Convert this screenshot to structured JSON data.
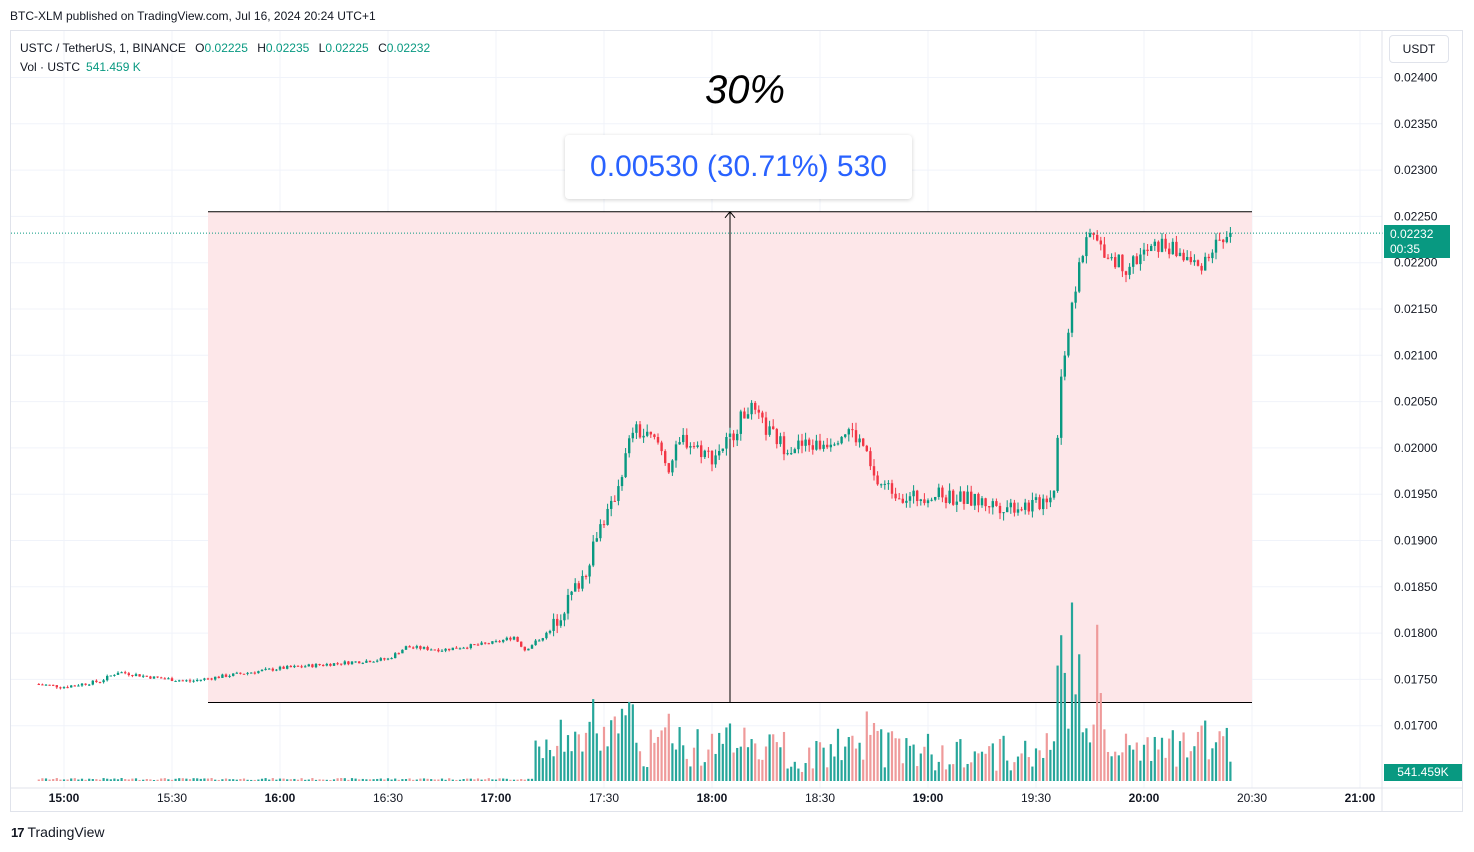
{
  "header": {
    "publish_line": "BTC-XLM published on TradingView.com, Jul 16, 2024 20:24 UTC+1"
  },
  "legend": {
    "symbol": "USTC / TetherUS, 1, BINANCE",
    "o_key": "O",
    "o_val": "0.02225",
    "h_key": "H",
    "h_val": "0.02235",
    "l_key": "L",
    "l_val": "0.02225",
    "c_key": "C",
    "c_val": "0.02232",
    "vol_label": "Vol · USTC",
    "vol_val": "541.459 K"
  },
  "toolbar": {
    "currency_label": "USDT"
  },
  "annotation": {
    "title": "30%",
    "measure_label": "0.00530 (30.71%) 530"
  },
  "price_tag": {
    "price": "0.02232",
    "countdown": "00:35"
  },
  "volume_tag": {
    "value": "541.459K"
  },
  "footer": {
    "logo_mark": "17",
    "logo_text": "TradingView"
  },
  "colors": {
    "up": "#089981",
    "down": "#f23645",
    "vol_up": "#26a69a",
    "vol_down": "#ef9a9a",
    "range_fill": "#fde7e9",
    "accent": "#2962ff"
  },
  "chart_data": {
    "type": "candlestick",
    "yaxis_ticks": [
      "0.02400",
      "0.02350",
      "0.02300",
      "0.02250",
      "0.02200",
      "0.02150",
      "0.02100",
      "0.02050",
      "0.02000",
      "0.01950",
      "0.01900",
      "0.01850",
      "0.01800",
      "0.01750",
      "0.01700"
    ],
    "xaxis_ticks": [
      "15:00",
      "15:30",
      "16:00",
      "16:30",
      "17:00",
      "17:30",
      "18:00",
      "18:30",
      "19:00",
      "19:30",
      "20:00",
      "20:30",
      "21:00"
    ],
    "ylim": [
      0.0167,
      0.0242
    ],
    "price_path": [
      [
        "14:52",
        0.01745
      ],
      [
        "15:00",
        0.01742
      ],
      [
        "15:10",
        0.01748
      ],
      [
        "15:15",
        0.01758
      ],
      [
        "15:25",
        0.01752
      ],
      [
        "15:35",
        0.01748
      ],
      [
        "15:45",
        0.01754
      ],
      [
        "16:00",
        0.01762
      ],
      [
        "16:15",
        0.01767
      ],
      [
        "16:30",
        0.01772
      ],
      [
        "16:35",
        0.01785
      ],
      [
        "16:45",
        0.01782
      ],
      [
        "17:00",
        0.0179
      ],
      [
        "17:05",
        0.01796
      ],
      [
        "17:08",
        0.01782
      ],
      [
        "17:15",
        0.01802
      ],
      [
        "17:20",
        0.01835
      ],
      [
        "17:25",
        0.01868
      ],
      [
        "17:28",
        0.0191
      ],
      [
        "17:32",
        0.01935
      ],
      [
        "17:35",
        0.01975
      ],
      [
        "17:38",
        0.0202
      ],
      [
        "17:45",
        0.02005
      ],
      [
        "17:48",
        0.0198
      ],
      [
        "17:52",
        0.0201
      ],
      [
        "18:00",
        0.0199
      ],
      [
        "18:05",
        0.0201
      ],
      [
        "18:10",
        0.02045
      ],
      [
        "18:15",
        0.0202
      ],
      [
        "18:20",
        0.02002
      ],
      [
        "18:30",
        0.02003
      ],
      [
        "18:38",
        0.0202
      ],
      [
        "18:42",
        0.02002
      ],
      [
        "18:45",
        0.01965
      ],
      [
        "18:55",
        0.01945
      ],
      [
        "19:00",
        0.0195
      ],
      [
        "19:10",
        0.01945
      ],
      [
        "19:20",
        0.01938
      ],
      [
        "19:30",
        0.01938
      ],
      [
        "19:35",
        0.01955
      ],
      [
        "19:37",
        0.0208
      ],
      [
        "19:40",
        0.0215
      ],
      [
        "19:42",
        0.022
      ],
      [
        "19:45",
        0.0223
      ],
      [
        "19:50",
        0.0221
      ],
      [
        "19:55",
        0.02195
      ],
      [
        "20:00",
        0.0221
      ],
      [
        "20:05",
        0.0222
      ],
      [
        "20:10",
        0.0221
      ],
      [
        "20:15",
        0.02195
      ],
      [
        "20:20",
        0.0222
      ],
      [
        "20:24",
        0.02232
      ]
    ],
    "price_range_measure": {
      "from": 0.01725,
      "to": 0.02255,
      "from_time": "15:40",
      "to_time": "20:30",
      "change": "0.00530",
      "percent": "30.71%",
      "ticks": "530"
    },
    "current_price": 0.02232,
    "current_volume": "541.459K",
    "grid": true
  }
}
